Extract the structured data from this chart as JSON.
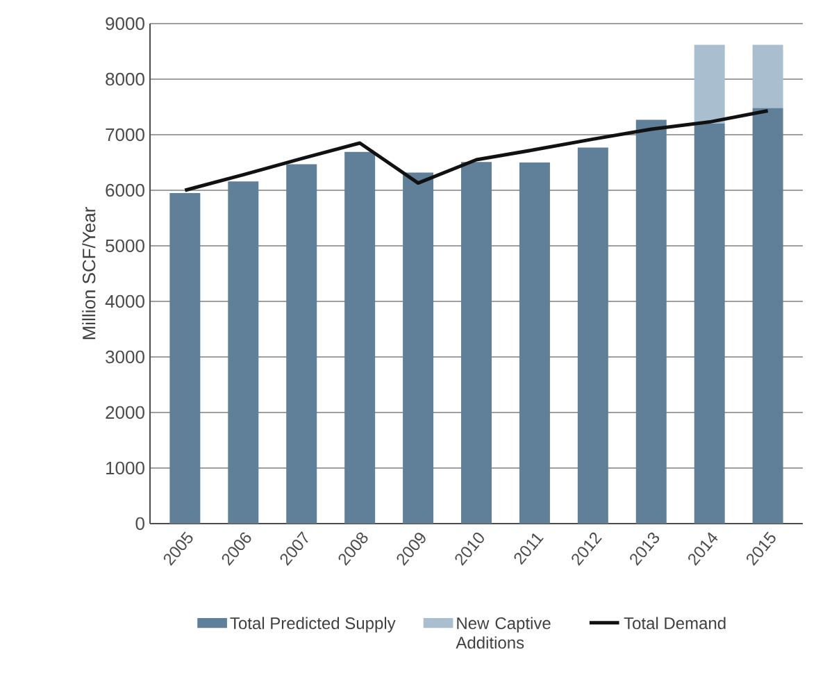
{
  "chart_data": {
    "type": "bar",
    "stacked": true,
    "ylabel": "Million SCF/Year",
    "categories": [
      "2005",
      "2006",
      "2007",
      "2008",
      "2009",
      "2010",
      "2011",
      "2012",
      "2013",
      "2014",
      "2015"
    ],
    "series": [
      {
        "name": "Total Predicted Supply",
        "color": "#5f8098",
        "values": [
          5950,
          6160,
          6470,
          6690,
          6320,
          6510,
          6500,
          6770,
          7270,
          7200,
          7480
        ]
      },
      {
        "name": "New Captive Additions",
        "color": "#a9bfd0",
        "values": [
          null,
          null,
          null,
          null,
          null,
          null,
          null,
          null,
          null,
          1420,
          1140
        ]
      },
      {
        "name": "Total Demand",
        "type": "line",
        "color": "#111111",
        "values": [
          6000,
          6280,
          6570,
          6850,
          6130,
          6550,
          6730,
          6920,
          7100,
          7230,
          7430
        ]
      }
    ],
    "ylim": [
      0,
      9000
    ],
    "yticks": [
      0,
      1000,
      2000,
      3000,
      4000,
      5000,
      6000,
      7000,
      8000,
      9000
    ],
    "grid": "y",
    "legend": "bottom",
    "marker": "none",
    "line_style": "solid"
  }
}
